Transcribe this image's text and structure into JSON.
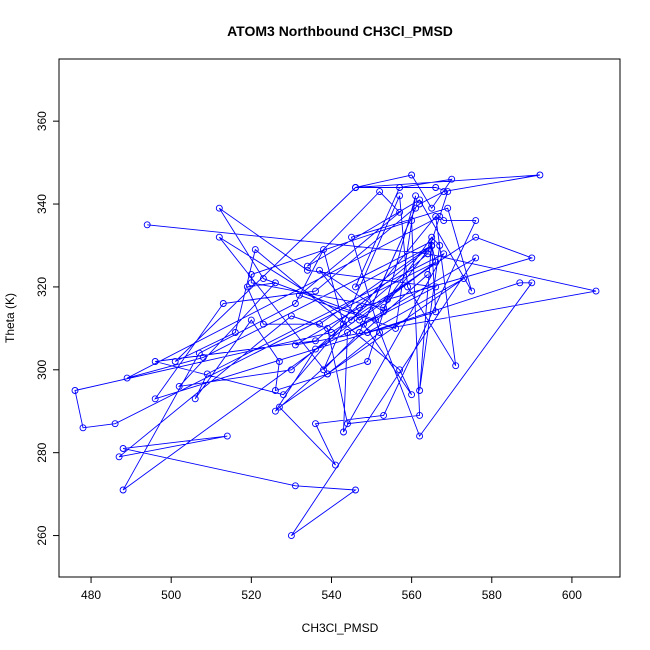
{
  "chart_data": {
    "type": "line",
    "title": "ATOM3 Northbound CH3Cl_PMSD",
    "xlabel": "CH3Cl_PMSD",
    "ylabel": "Theta (K)",
    "xlim": [
      472,
      612
    ],
    "ylim": [
      250,
      375
    ],
    "xticks": [
      480,
      500,
      520,
      540,
      560,
      580,
      600
    ],
    "yticks": [
      260,
      280,
      300,
      320,
      340,
      360
    ],
    "grid": false,
    "line_color": "#0000ff",
    "series": [
      {
        "x": [
          494,
          564,
          606,
          531,
          547,
          590,
          576,
          540,
          476,
          478,
          486,
          566,
          547,
          537,
          553,
          561,
          556,
          532,
          557,
          552,
          534,
          562,
          575,
          569,
          545,
          552,
          539,
          512,
          545,
          566,
          571,
          559,
          557,
          538,
          547,
          561,
          548,
          560,
          557,
          521,
          516,
          501,
          546,
          566,
          569,
          564,
          530,
          502,
          526,
          519,
          523,
          537,
          565,
          566,
          488,
          507,
          531,
          538,
          543,
          528,
          496,
          536,
          565,
          566,
          496,
          513,
          536,
          562,
          568,
          592,
          546,
          560,
          565,
          570,
          557,
          546,
          565,
          553,
          520,
          520,
          560,
          562,
          544,
          539,
          530,
          487,
          514,
          488,
          531,
          546,
          530,
          576,
          544,
          543,
          568,
          509,
          506,
          520,
          527,
          526,
          549,
          554,
          565,
          567,
          562,
          565,
          508,
          489,
          567,
          568,
          576,
          553,
          536,
          541,
          527,
          539,
          573,
          549,
          587,
          590,
          562,
          551,
          523,
          512,
          534,
          566,
          536,
          526,
          564
        ],
        "y": [
          335,
          328,
          319,
          306,
          315,
          327,
          332,
          309,
          295,
          286,
          287,
          326,
          312,
          324,
          314,
          342,
          310,
          318,
          338,
          343,
          325,
          341,
          319,
          339,
          332,
          309,
          299,
          332,
          312,
          337,
          301,
          320,
          342,
          300,
          309,
          339,
          311,
          294,
          300,
          329,
          309,
          302,
          344,
          344,
          343,
          328,
          300,
          296,
          321,
          320,
          311,
          311,
          330,
          326,
          271,
          304,
          316,
          329,
          311,
          294,
          302,
          307,
          330,
          314,
          293,
          316,
          319,
          340,
          343,
          347,
          344,
          347,
          339,
          346,
          344,
          320,
          330,
          315,
          321,
          323,
          336,
          289,
          287,
          310,
          313,
          279,
          284,
          281,
          272,
          271,
          260,
          327,
          309,
          285,
          328,
          299,
          293,
          312,
          302,
          295,
          302,
          317,
          332,
          330,
          295,
          331,
          303,
          298,
          337,
          336,
          336,
          289,
          287,
          277,
          291,
          299,
          322,
          309,
          321,
          321,
          284,
          312,
          322,
          339,
          324,
          320,
          305,
          290,
          323
        ]
      }
    ]
  }
}
